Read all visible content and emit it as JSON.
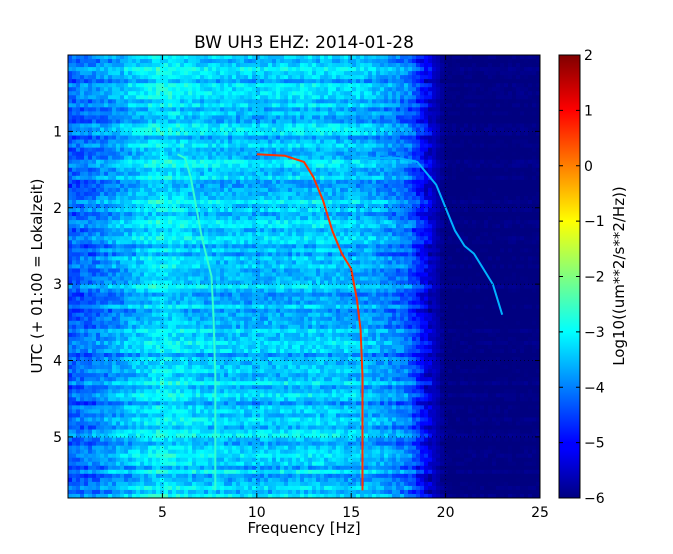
{
  "chart_data": {
    "type": "heatmap",
    "title": "BW UH3 EHZ: 2014-01-28",
    "xlabel": "Frequency [Hz]",
    "ylabel": "UTC (+ 01:00 = Lokalzeit)",
    "xlim": [
      0,
      25
    ],
    "ylim": [
      5.8,
      0
    ],
    "x_ticks": [
      5,
      10,
      15,
      20,
      25
    ],
    "x_tick_labels": [
      "5",
      "10",
      "15",
      "20",
      "25"
    ],
    "y_ticks": [
      1,
      2,
      3,
      4,
      5
    ],
    "y_tick_labels": [
      "1",
      "2",
      "3",
      "4",
      "5"
    ],
    "grid": true,
    "colormap": "jet",
    "colorbar": {
      "label": "Log10((um**2/s**2/Hz))",
      "range": [
        -6,
        2
      ],
      "ticks": [
        2,
        1,
        0,
        -1,
        -2,
        -3,
        -4,
        -5,
        -6
      ],
      "tick_labels": [
        "2",
        "1",
        "0",
        "−1",
        "−2",
        "−3",
        "−4",
        "−5",
        "−6"
      ]
    },
    "background_level_by_frequency": {
      "x": [
        0,
        1.5,
        3,
        5,
        7,
        10,
        13,
        16,
        18,
        19,
        20,
        25
      ],
      "values": [
        -4.3,
        -4.0,
        -3.6,
        -3.1,
        -3.4,
        -3.5,
        -3.4,
        -3.6,
        -4.1,
        -5.2,
        -6.0,
        -6.0
      ]
    },
    "series": [
      {
        "x": [
          5.8,
          6.2,
          6.5,
          6.8,
          7.1,
          7.4,
          7.6,
          7.7,
          7.8,
          7.8
        ],
        "y": [
          1.3,
          1.35,
          1.6,
          2.0,
          2.4,
          2.7,
          2.9,
          3.4,
          4.2,
          5.7
        ],
        "level": -2.6
      },
      {
        "x": [
          10.0,
          11.5,
          12.5,
          13.0,
          13.5,
          14.0,
          14.5,
          15.0,
          15.3,
          15.5,
          15.6,
          15.6
        ],
        "y": [
          1.3,
          1.32,
          1.4,
          1.6,
          1.9,
          2.3,
          2.6,
          2.8,
          3.2,
          3.6,
          4.2,
          5.7
        ],
        "level": 0.6
      },
      {
        "x": [
          15.5,
          17.5,
          18.5,
          19.5,
          20.0,
          20.5,
          21.0,
          21.5,
          22.0,
          22.5,
          23.0
        ],
        "y": [
          1.35,
          1.35,
          1.4,
          1.7,
          2.0,
          2.3,
          2.5,
          2.6,
          2.8,
          3.0,
          3.4
        ],
        "level": -3.6
      }
    ]
  }
}
